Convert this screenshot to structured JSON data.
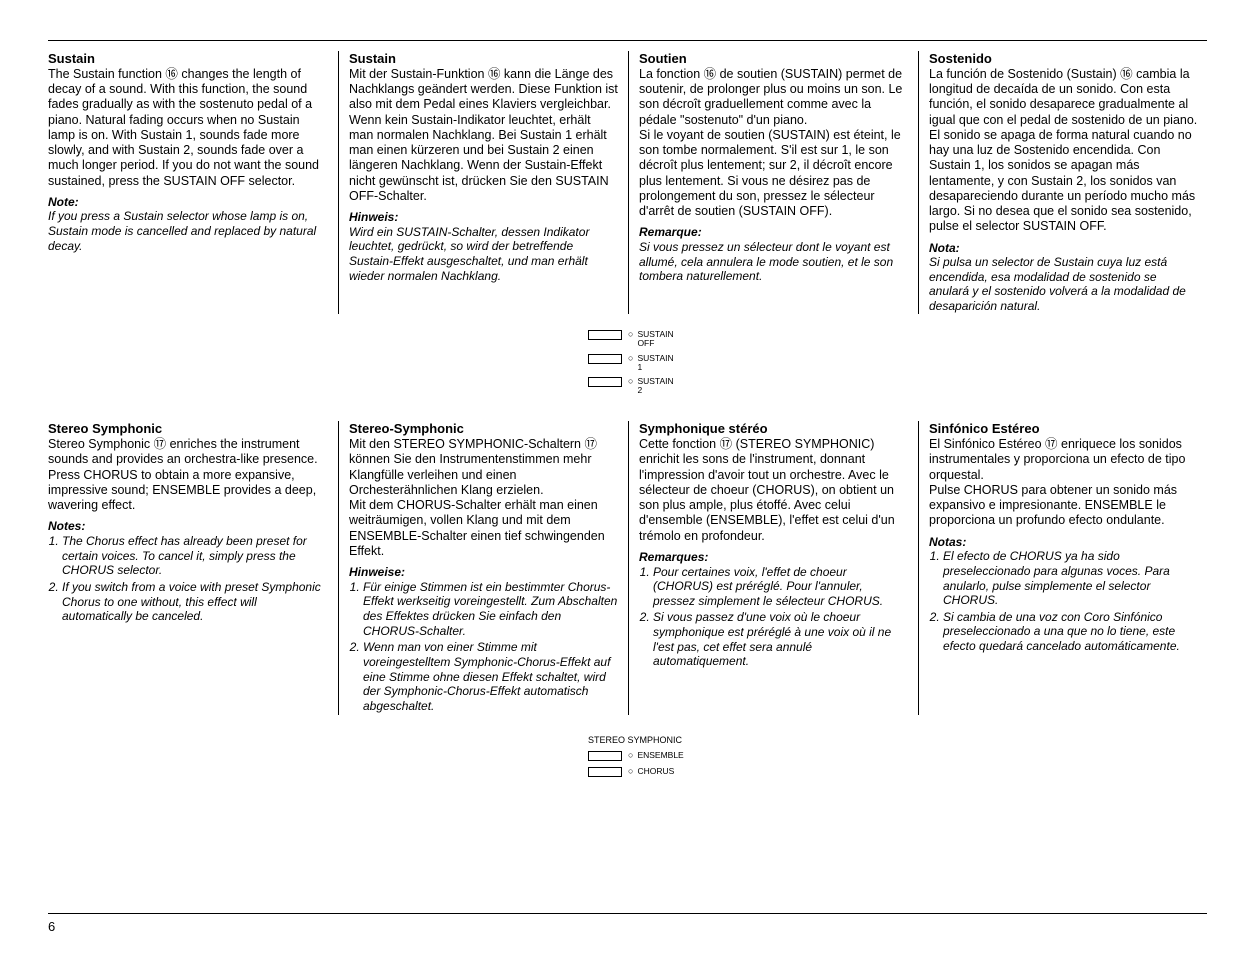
{
  "ref": {
    "r16": "⑯",
    "r17": "⑰"
  },
  "sustain": {
    "en": {
      "title": "Sustain",
      "body": "The Sustain function ⑯ changes the length of decay of a sound. With this function, the sound fades gradually as with the sostenuto pedal of a piano. Natural fading occurs when no Sustain lamp is on. With Sustain 1, sounds fade more slowly, and with Sustain 2, sounds fade over a much longer period. If you do not want the sound sustained, press the SUSTAIN OFF selector.",
      "note_label": "Note:",
      "note": "If you press a Sustain selector whose lamp is on, Sustain mode is cancelled and replaced by natural decay."
    },
    "de": {
      "title": "Sustain",
      "body": "Mit der Sustain-Funktion ⑯ kann die Länge des Nachklangs geändert werden. Diese Funktion ist also mit dem Pedal eines Klaviers vergleichbar.\nWenn kein Sustain-Indikator leuchtet, erhält man normalen Nachklang. Bei Sustain 1 erhält man einen kürzeren und bei Sustain 2 einen längeren Nachklang. Wenn der Sustain-Effekt nicht gewünscht ist, drücken Sie den SUSTAIN OFF-Schalter.",
      "note_label": "Hinweis:",
      "note": "Wird ein SUSTAIN-Schalter, dessen Indikator leuchtet, gedrückt, so wird der betreffende Sustain-Effekt ausgeschaltet, und man erhält wieder normalen Nachklang."
    },
    "fr": {
      "title": "Soutien",
      "body": "La fonction ⑯ de soutien (SUSTAIN) permet de soutenir, de prolonger plus ou moins un son. Le son décroît graduellement comme avec la pédale \"sostenuto\" d'un piano.\nSi le voyant de soutien (SUSTAIN) est éteint, le son tombe normalement. S'il est sur 1, le son décroît plus lentement; sur 2, il décroît encore plus lentement. Si vous ne désirez pas de prolongement du son, pressez le sélecteur d'arrêt de soutien (SUSTAIN OFF).",
      "note_label": "Remarque:",
      "note": "Si vous pressez un sélecteur dont le voyant est allumé, cela annulera le mode soutien, et le son tombera naturellement."
    },
    "es": {
      "title": "Sostenido",
      "body": "La función de Sostenido (Sustain) ⑯ cambia la longitud de decaída de un sonido. Con esta función, el sonido desaparece gradualmente al igual que con el pedal de sostenido de un piano.\nEl sonido se apaga de forma natural cuando no hay una luz de Sostenido encendida. Con Sustain 1, los sonidos se apagan más lentamente, y con Sustain 2, los sonidos van desapareciendo durante un período mucho más largo. Si no desea que el sonido sea sostenido, pulse el selector SUSTAIN OFF.",
      "note_label": "Nota:",
      "note": "Si pulsa un selector de Sustain cuya luz está encendida, esa modalidad de sostenido se anulará y el sostenido volverá a la modalidad de desaparición natural."
    },
    "buttons": [
      {
        "label": "SUSTAIN\nOFF"
      },
      {
        "label": "SUSTAIN\n1"
      },
      {
        "label": "SUSTAIN\n2"
      }
    ]
  },
  "symphonic": {
    "en": {
      "title": "Stereo Symphonic",
      "body": "Stereo Symphonic ⑰ enriches the instrument sounds and provides an orchestra-like presence.\nPress CHORUS to obtain a more expansive, impressive sound; ENSEMBLE provides a deep, wavering effect.",
      "note_label": "Notes:",
      "notes": [
        "The Chorus effect has already been preset for certain voices. To cancel it, simply press the CHORUS selector.",
        "If you switch from a voice with preset Symphonic Chorus to one without, this effect will automatically be canceled."
      ]
    },
    "de": {
      "title": "Stereo-Symphonic",
      "body": "Mit den STEREO SYMPHONIC-Schaltern ⑰ können Sie den Instrumentenstimmen mehr Klangfülle verleihen und einen Orchesterähnlichen Klang erzielen.\nMit dem CHORUS-Schalter erhält man einen weiträumigen, vollen Klang und mit dem ENSEMBLE-Schalter einen tief schwingenden Effekt.",
      "note_label": "Hinweise:",
      "notes": [
        "Für einige Stimmen ist ein bestimmter Chorus-Effekt werkseitig voreingestellt. Zum Abschalten des Effektes drücken Sie einfach den CHORUS-Schalter.",
        "Wenn man von einer Stimme mit voreingestelltem Symphonic-Chorus-Effekt auf eine Stimme ohne diesen Effekt schaltet, wird der Symphonic-Chorus-Effekt automatisch abgeschaltet."
      ]
    },
    "fr": {
      "title": "Symphonique stéréo",
      "body": "Cette fonction ⑰ (STEREO SYMPHONIC) enrichit les sons de l'instrument, donnant l'impression d'avoir tout un orchestre. Avec le sélecteur de choeur (CHORUS), on obtient un son plus ample, plus étoffé. Avec celui d'ensemble (ENSEMBLE), l'effet est celui d'un trémolo en profondeur.",
      "note_label": "Remarques:",
      "notes": [
        "Pour certaines voix, l'effet de choeur (CHORUS) est préréglé. Pour l'annuler, pressez simplement le sélecteur CHORUS.",
        "Si vous passez d'une voix où le choeur symphonique est préréglé à une voix où il ne l'est pas, cet effet sera annulé automatiquement."
      ]
    },
    "es": {
      "title": "Sinfónico Estéreo",
      "body": "El Sinfónico Estéreo ⑰ enriquece los sonidos instrumentales y proporciona un efecto de tipo orquestal.\nPulse CHORUS para obtener un sonido más expansivo e impresionante. ENSEMBLE le proporciona un profundo efecto ondulante.",
      "note_label": "Notas:",
      "notes": [
        "El efecto de CHORUS ya ha sido preseleccionado para algunas voces. Para anularlo, pulse simplemente el selector CHORUS.",
        "Si cambia de una voz con Coro Sinfónico preseleccionado a una que no lo tiene, este efecto quedará cancelado automáticamente."
      ]
    },
    "panel_header": "STEREO SYMPHONIC",
    "buttons": [
      {
        "label": "ENSEMBLE"
      },
      {
        "label": "CHORUS"
      }
    ]
  },
  "page_number": "6"
}
